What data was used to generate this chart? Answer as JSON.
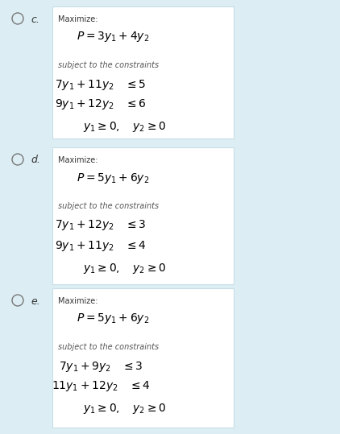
{
  "bg_color": "#dceef4",
  "box_color": "#ffffff",
  "box_edge_color": "#c8dde5",
  "options": [
    {
      "label": "c.",
      "obj_latex": "$\\mathit{P} = 3y_1 + 4y_2$",
      "c1_latex": "$7y_1 + 11y_2 \\quad \\leq 5$",
      "c2_latex": "$9y_1 + 12y_2 \\quad \\leq 6$",
      "c3_latex": "$y_1 \\geq 0, \\quad y_2 \\geq 0$"
    },
    {
      "label": "d.",
      "obj_latex": "$\\mathit{P} = 5y_1 + 6y_2$",
      "c1_latex": "$7y_1 + 12y_2 \\quad \\leq 3$",
      "c2_latex": "$9y_1 + 11y_2 \\quad \\leq 4$",
      "c3_latex": "$y_1 \\geq 0, \\quad y_2 \\geq 0$"
    },
    {
      "label": "e.",
      "obj_latex": "$\\mathit{P} = 5y_1 + 6y_2$",
      "c1_latex": "$7y_1 + 9y_2 \\quad \\leq 3$",
      "c2_latex": "$11y_1 + 12y_2 \\quad \\leq 4$",
      "c3_latex": "$y_1 \\geq 0, \\quad y_2 \\geq 0$"
    }
  ],
  "fig_width": 4.22,
  "fig_height": 5.39,
  "dpi": 100
}
